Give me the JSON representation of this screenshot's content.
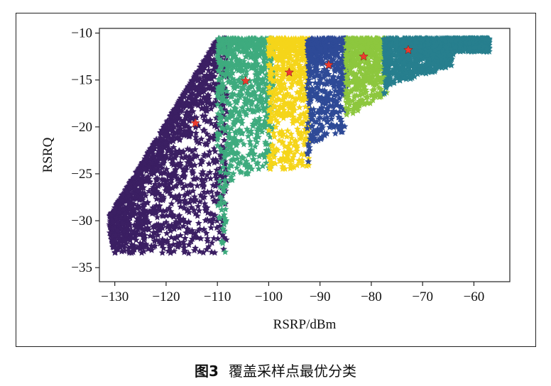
{
  "chart_data": {
    "type": "scatter",
    "xlabel": "RSRP/dBm",
    "ylabel": "RSRQ",
    "xlim": [
      -133,
      -53
    ],
    "ylim": [
      -36.5,
      -9.5
    ],
    "xticks": [
      -130,
      -120,
      -110,
      -100,
      -90,
      -80,
      -70,
      -60
    ],
    "yticks": [
      -35,
      -30,
      -25,
      -20,
      -15,
      -10
    ],
    "grid": false,
    "legend": "none",
    "marker": "star",
    "clusters": [
      {
        "color": "#3b1f63",
        "x_range": [
          -131,
          -108
        ],
        "centroid": [
          -114.3,
          -19.6
        ],
        "size_hint": 1
      },
      {
        "color": "#3eab7e",
        "x_range": [
          -110,
          -99
        ],
        "centroid": [
          -104.5,
          -15.1
        ],
        "size_hint": 1
      },
      {
        "color": "#f5d51a",
        "x_range": [
          -100,
          -92
        ],
        "centroid": [
          -96,
          -14.2
        ],
        "size_hint": 1
      },
      {
        "color": "#2e4a97",
        "x_range": [
          -92.5,
          -84.5
        ],
        "centroid": [
          -88.3,
          -13.4
        ],
        "size_hint": 1
      },
      {
        "color": "#8dc73e",
        "x_range": [
          -85,
          -77
        ],
        "centroid": [
          -81.5,
          -12.5
        ],
        "size_hint": 1
      },
      {
        "color": "#277f8e",
        "x_range": [
          -77.5,
          -57
        ],
        "centroid": [
          -72.8,
          -11.8
        ],
        "size_hint": 1
      }
    ],
    "centroid_color": "#ee3b2e",
    "centroids": [
      {
        "x": -114.3,
        "y": -19.6
      },
      {
        "x": -104.5,
        "y": -15.1
      },
      {
        "x": -96.0,
        "y": -14.2
      },
      {
        "x": -88.3,
        "y": -13.4
      },
      {
        "x": -81.5,
        "y": -12.5
      },
      {
        "x": -72.8,
        "y": -11.8
      }
    ]
  },
  "caption": {
    "label": "图3",
    "text": "覆盖采样点最优分类"
  }
}
